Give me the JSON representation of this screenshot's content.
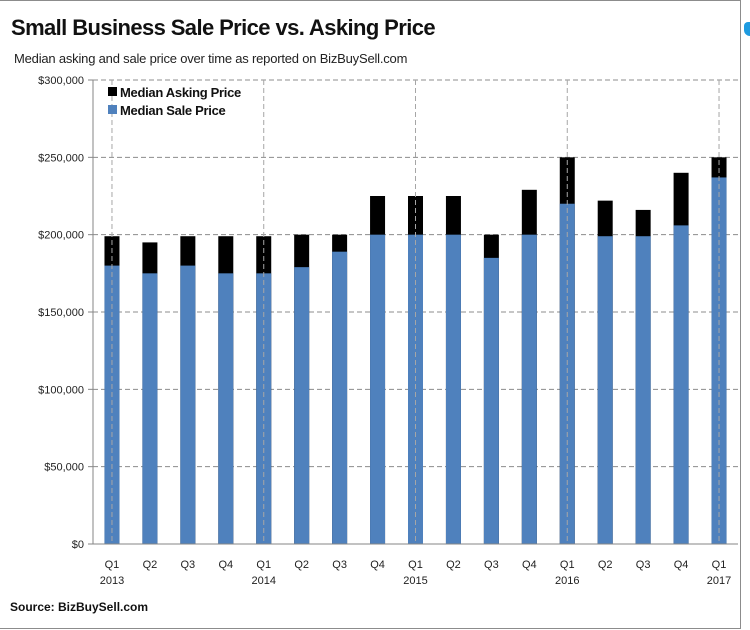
{
  "chart_data": {
    "type": "bar",
    "stacking": "overlapped",
    "title": "Small Business Sale Price vs. Asking Price",
    "subtitle": "Median asking and sale price over time as reported  on  BizBuySell.com",
    "source": "Source: BizBuySell.com",
    "xlabel": "",
    "ylabel": "",
    "ylim": [
      0,
      300000
    ],
    "yticks": [
      0,
      50000,
      100000,
      150000,
      200000,
      250000,
      300000
    ],
    "ytick_labels": [
      "$0",
      "$50,000",
      "$100,000",
      "$150,000",
      "$200,000",
      "$250,000",
      "$300,000"
    ],
    "grid": true,
    "legend_position": "top-left",
    "categories": [
      "Q1 2013",
      "Q2 2013",
      "Q3 2013",
      "Q4 2013",
      "Q1 2014",
      "Q2 2014",
      "Q3 2014",
      "Q4 2014",
      "Q1 2015",
      "Q2 2015",
      "Q3 2015",
      "Q4 2015",
      "Q1 2016",
      "Q2 2016",
      "Q3 2016",
      "Q4 2016",
      "Q1 2017"
    ],
    "tick_quarters": [
      "Q1",
      "Q2",
      "Q3",
      "Q4",
      "Q1",
      "Q2",
      "Q3",
      "Q4",
      "Q1",
      "Q2",
      "Q3",
      "Q4",
      "Q1",
      "Q2",
      "Q3",
      "Q4",
      "Q1"
    ],
    "tick_years": [
      "2013",
      "",
      "",
      "",
      "2014",
      "",
      "",
      "",
      "2015",
      "",
      "",
      "",
      "2016",
      "",
      "",
      "",
      "2017"
    ],
    "series": [
      {
        "name": "Median Asking Price",
        "color": "#000000",
        "values": [
          199000,
          195000,
          199000,
          199000,
          199000,
          200000,
          200000,
          225000,
          225000,
          225000,
          200000,
          229000,
          250000,
          222000,
          216000,
          240000,
          250000
        ]
      },
      {
        "name": "Median Sale Price",
        "color": "#4f81bd",
        "values": [
          180000,
          175000,
          180000,
          175000,
          175000,
          179000,
          189000,
          200000,
          200000,
          200000,
          185000,
          200000,
          220000,
          199000,
          199000,
          206000,
          237000
        ]
      }
    ]
  }
}
